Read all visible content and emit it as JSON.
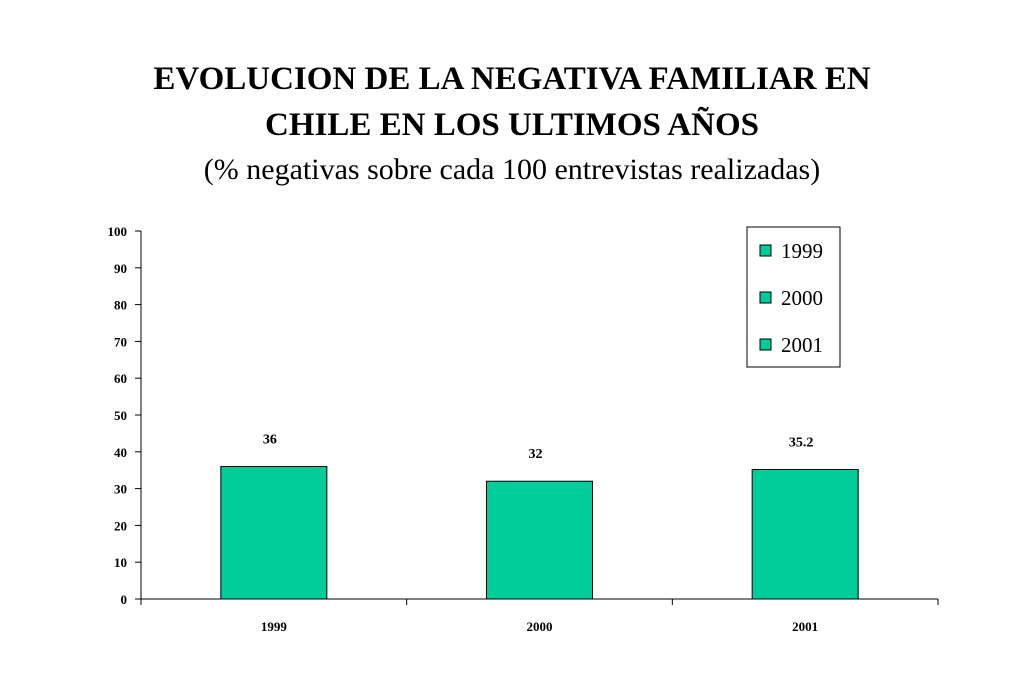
{
  "chart_data": {
    "type": "bar",
    "title_lines": [
      "EVOLUCION DE LA NEGATIVA FAMILIAR EN",
      "CHILE EN LOS ULTIMOS AÑOS"
    ],
    "subtitle": "(% negativas sobre cada 100 entrevistas realizadas)",
    "categories": [
      "1999",
      "2000",
      "2001"
    ],
    "values": [
      36,
      32,
      35.2
    ],
    "data_labels": [
      "36",
      "32",
      "35.2"
    ],
    "ylim": [
      0,
      100
    ],
    "yticks": [
      0,
      10,
      20,
      30,
      40,
      50,
      60,
      70,
      80,
      90,
      100
    ],
    "xlabel": "",
    "ylabel": "",
    "grid": false,
    "bar_color": "#00CC99",
    "legend": {
      "placement": "top-right",
      "entries": [
        "1999",
        "2000",
        "2001"
      ]
    }
  }
}
